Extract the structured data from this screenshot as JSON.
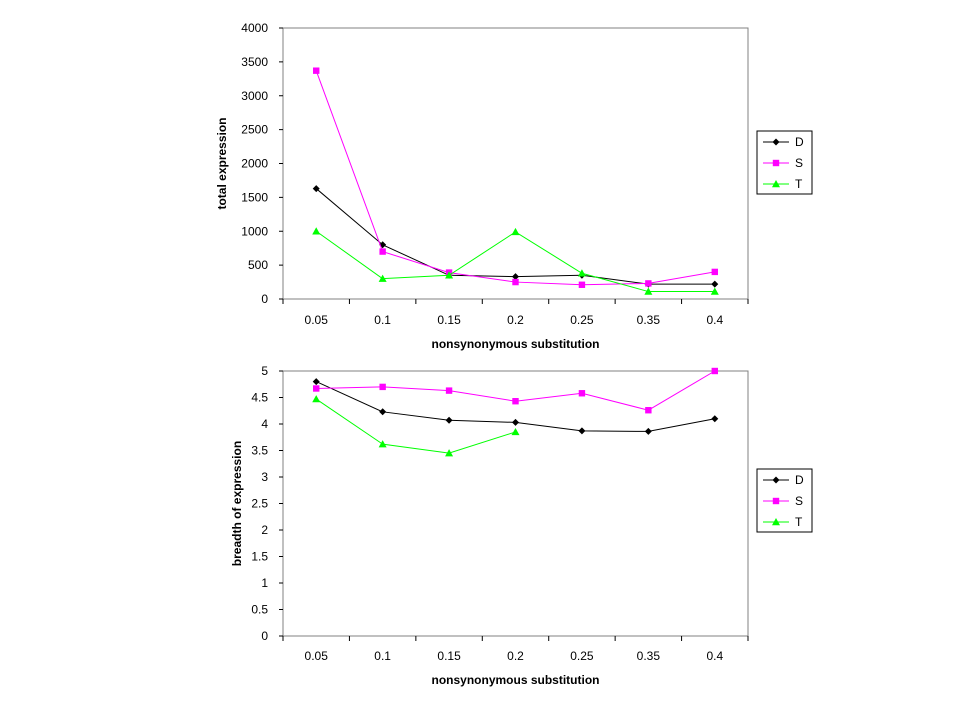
{
  "chart_data": [
    {
      "type": "line",
      "categories": [
        "0.05",
        "0.1",
        "0.15",
        "0.2",
        "0.25",
        "0.35",
        "0.4"
      ],
      "xlabel": "nonsynonymous substitution",
      "ylabel": "total expression",
      "ylim": [
        0,
        4000
      ],
      "yticks": [
        0,
        500,
        1000,
        1500,
        2000,
        2500,
        3000,
        3500,
        4000
      ],
      "grid": false,
      "legend_position": "right",
      "series": [
        {
          "name": "D",
          "color": "#000000",
          "marker": "diamond",
          "values": [
            1630,
            800,
            350,
            330,
            350,
            220,
            220
          ]
        },
        {
          "name": "S",
          "color": "#ff00ff",
          "marker": "square",
          "values": [
            3370,
            700,
            390,
            250,
            210,
            230,
            400
          ]
        },
        {
          "name": "T",
          "color": "#00ff00",
          "marker": "triangle",
          "values": [
            1000,
            300,
            350,
            990,
            380,
            110,
            110
          ]
        }
      ]
    },
    {
      "type": "line",
      "categories": [
        "0.05",
        "0.1",
        "0.15",
        "0.2",
        "0.25",
        "0.35",
        "0.4"
      ],
      "xlabel": "nonsynonymous substitution",
      "ylabel": "breadth of expression",
      "ylim": [
        0,
        5
      ],
      "yticks": [
        0,
        0.5,
        1,
        1.5,
        2,
        2.5,
        3,
        3.5,
        4,
        4.5,
        5
      ],
      "grid": false,
      "legend_position": "right",
      "series": [
        {
          "name": "D",
          "color": "#000000",
          "marker": "diamond",
          "values": [
            4.8,
            4.23,
            4.07,
            4.03,
            3.87,
            3.86,
            4.1
          ]
        },
        {
          "name": "S",
          "color": "#ff00ff",
          "marker": "square",
          "values": [
            4.67,
            4.7,
            4.63,
            4.43,
            4.58,
            4.26,
            5.0
          ]
        },
        {
          "name": "T",
          "color": "#00ff00",
          "marker": "triangle",
          "values": [
            4.47,
            3.62,
            3.45,
            3.85,
            null,
            null,
            null
          ]
        }
      ]
    }
  ]
}
